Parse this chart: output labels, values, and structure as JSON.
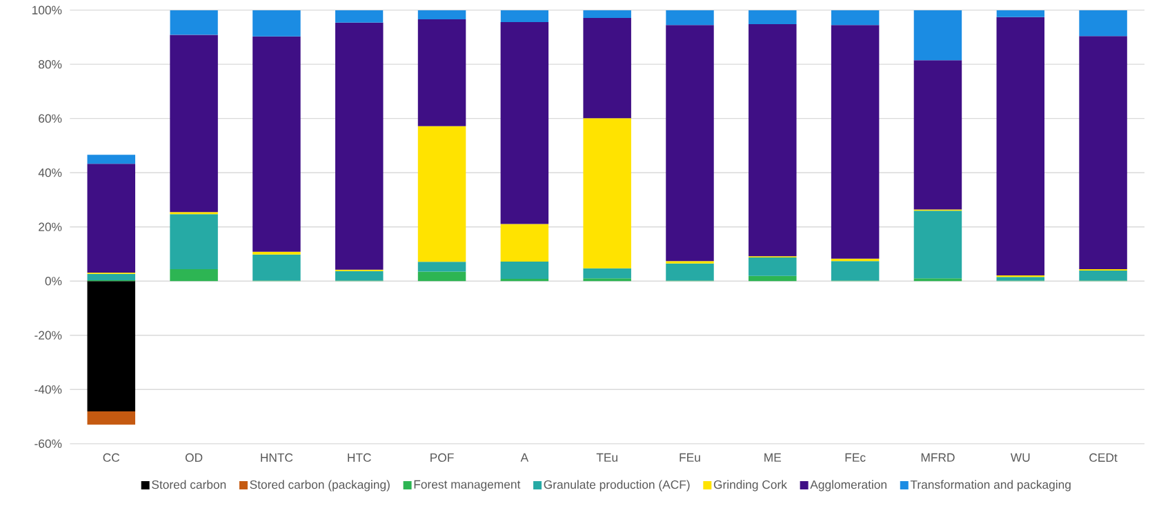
{
  "chart_data": {
    "type": "bar",
    "stacked": true,
    "grid": "y",
    "legend": "bottom",
    "categories": [
      "CC",
      "OD",
      "HNTC",
      "HTC",
      "POF",
      "A",
      "TEu",
      "FEu",
      "ME",
      "FEc",
      "MFRD",
      "WU",
      "CEDt"
    ],
    "ylim": [
      -60,
      100
    ],
    "yticks": [
      {
        "value": -60,
        "label": "-60%"
      },
      {
        "value": -40,
        "label": "-40%"
      },
      {
        "value": -20,
        "label": "-20%"
      },
      {
        "value": 0,
        "label": "0%"
      },
      {
        "value": 20,
        "label": "20%"
      },
      {
        "value": 40,
        "label": "40%"
      },
      {
        "value": 60,
        "label": "60%"
      },
      {
        "value": 80,
        "label": "80%"
      },
      {
        "value": 100,
        "label": "100%"
      }
    ],
    "series": [
      {
        "name": "Stored carbon",
        "color": "#000000",
        "values": [
          -48.1,
          0,
          0,
          0,
          0,
          0,
          0,
          0,
          0,
          0,
          0,
          0,
          0
        ]
      },
      {
        "name": "Stored carbon (packaging)",
        "color": "#c55a11",
        "values": [
          -4.9,
          0,
          0,
          0,
          0,
          0,
          0,
          0,
          0,
          0,
          0,
          0,
          0
        ]
      },
      {
        "name": "Forest management",
        "color": "#2db553",
        "values": [
          0.3,
          4.4,
          0.2,
          0.2,
          3.5,
          0.8,
          1.0,
          0.2,
          1.9,
          0.2,
          1.0,
          0.2,
          0.2
        ]
      },
      {
        "name": "Granulate production (ACF)",
        "color": "#26aaa5",
        "values": [
          2.4,
          20.3,
          9.6,
          3.5,
          3.6,
          6.4,
          3.7,
          6.3,
          6.8,
          7.2,
          25.0,
          1.3,
          3.7
        ]
      },
      {
        "name": "Grinding Cork",
        "color": "#ffe300",
        "values": [
          0.4,
          0.8,
          1.0,
          0.5,
          50.1,
          13.9,
          55.4,
          0.9,
          0.5,
          0.9,
          0.4,
          0.6,
          0.5
        ]
      },
      {
        "name": "Agglomeration",
        "color": "#3f0f85",
        "values": [
          40.2,
          65.4,
          79.5,
          91.2,
          39.4,
          74.5,
          37.0,
          87.1,
          85.6,
          86.2,
          55.1,
          95.3,
          86.0
        ]
      },
      {
        "name": "Transformation and packaging",
        "color": "#1b8ce3",
        "values": [
          3.3,
          9.1,
          9.7,
          4.6,
          3.4,
          4.4,
          2.9,
          5.5,
          5.2,
          5.5,
          18.5,
          2.6,
          9.6
        ]
      }
    ]
  }
}
